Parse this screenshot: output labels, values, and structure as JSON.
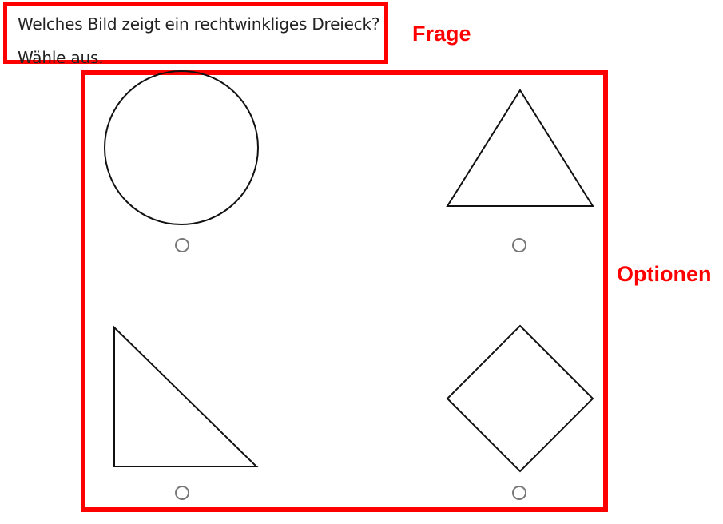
{
  "question": {
    "line1": "Welches Bild zeigt ein rechtwinkliges Dreieck?",
    "line2": "Wähle aus."
  },
  "annotations": {
    "question_label": "Frage",
    "options_label": "Optionen"
  },
  "options": [
    {
      "shape": "circle"
    },
    {
      "shape": "equilateral-triangle"
    },
    {
      "shape": "right-triangle"
    },
    {
      "shape": "diamond"
    }
  ],
  "colors": {
    "annotation": "#ff0000",
    "shape_stroke": "#111111",
    "radio_border": "#777777"
  }
}
